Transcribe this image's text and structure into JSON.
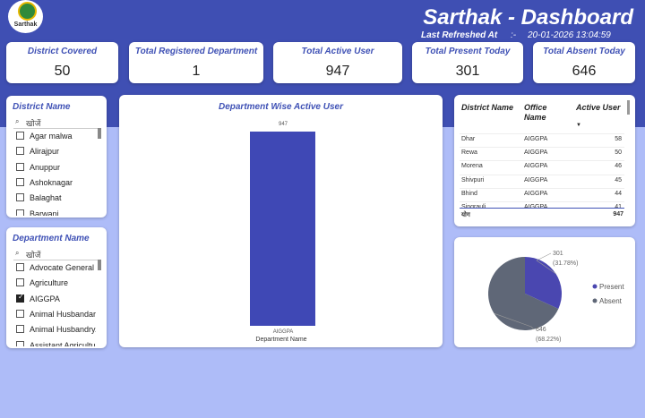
{
  "header": {
    "logo_text": "Sarthak",
    "title": "Sarthak - Dashboard",
    "refresh_label": "Last Refreshed At",
    "refresh_sep": ":-",
    "refresh_time": "20-01-2026 13:04:59"
  },
  "kpis": [
    {
      "label": "District Covered",
      "value": 50
    },
    {
      "label": "Total Registered Department",
      "value": 1
    },
    {
      "label": "Total Active User",
      "value": 947
    },
    {
      "label": "Total Present Today",
      "value": 301
    },
    {
      "label": "Total Absent Today",
      "value": 646
    }
  ],
  "district_slicer": {
    "title": "District Name",
    "search": "खोजें",
    "items": [
      {
        "label": "Agar malwa",
        "checked": false
      },
      {
        "label": "Alirajpur",
        "checked": false
      },
      {
        "label": "Anuppur",
        "checked": false
      },
      {
        "label": "Ashoknagar",
        "checked": false
      },
      {
        "label": "Balaghat",
        "checked": false
      },
      {
        "label": "Barwani",
        "checked": false
      }
    ]
  },
  "department_slicer": {
    "title": "Department Name",
    "search": "खोजें",
    "items": [
      {
        "label": "Advocate General ...",
        "checked": false
      },
      {
        "label": "Agriculture",
        "checked": false
      },
      {
        "label": "AIGGPA",
        "checked": true
      },
      {
        "label": "Animal Husbandar...",
        "checked": false
      },
      {
        "label": "Animal Husbandry...",
        "checked": false
      },
      {
        "label": "Assistant Agricultu...",
        "checked": false
      }
    ]
  },
  "bar_chart": {
    "type": "bar",
    "title": "Department Wise Active User",
    "categories": [
      "AIGGPA"
    ],
    "values": [
      947
    ],
    "x_label": "Department Name",
    "color": "#3f48b5"
  },
  "table": {
    "columns": [
      "District Name",
      "Office Name",
      "Active User"
    ],
    "rows": [
      [
        "Dhar",
        "AIGGPA",
        58
      ],
      [
        "Rewa",
        "AIGGPA",
        50
      ],
      [
        "Morena",
        "AIGGPA",
        46
      ],
      [
        "Shivpuri",
        "AIGGPA",
        45
      ],
      [
        "Bhind",
        "AIGGPA",
        44
      ],
      [
        "Singrauli",
        "AIGGPA",
        41
      ]
    ],
    "total": [
      "योग",
      947
    ]
  },
  "pie_chart": {
    "type": "pie",
    "categories": [
      "Present",
      "Absent"
    ],
    "values": [
      301,
      646
    ],
    "percent_labels": [
      "(31.78%)",
      "(68.22%)"
    ],
    "colors": [
      "#4a47b0",
      "#5f6777"
    ]
  }
}
